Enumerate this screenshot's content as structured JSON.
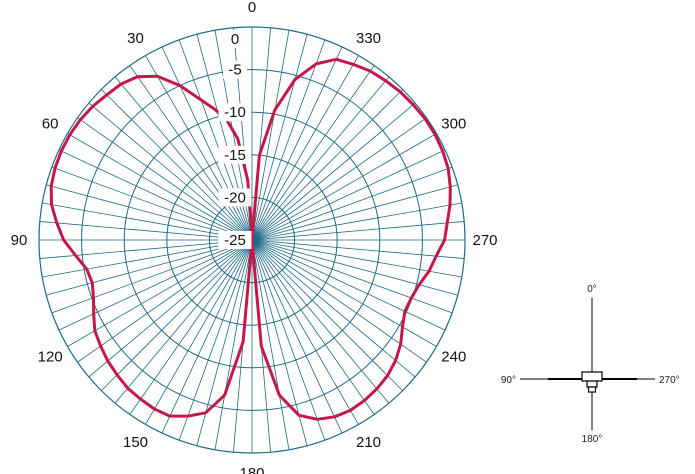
{
  "chart_data": {
    "type": "polar-line",
    "angle_ticks": [
      "0",
      "30",
      "60",
      "90",
      "120",
      "150",
      "180",
      "210",
      "240",
      "270",
      "300",
      "330"
    ],
    "radial_ticks": [
      "0",
      "-5",
      "-10",
      "-15",
      "-20",
      "-25"
    ],
    "rlim": [
      -25,
      0
    ],
    "angle_direction": "counterclockwise",
    "zero_at": "top",
    "grid": true,
    "series": [
      {
        "color": "#c4174a",
        "points": [
          [
            0,
            -25
          ],
          [
            4,
            -18
          ],
          [
            8,
            -13
          ],
          [
            12,
            -10.5
          ],
          [
            16,
            -9
          ],
          [
            20,
            -7.5
          ],
          [
            25,
            -5
          ],
          [
            30,
            -2.8
          ],
          [
            35,
            -1.6
          ],
          [
            40,
            -1.1
          ],
          [
            45,
            -0.9
          ],
          [
            50,
            -0.6
          ],
          [
            55,
            -0.4
          ],
          [
            60,
            -0.3
          ],
          [
            65,
            -0.3
          ],
          [
            70,
            -0.4
          ],
          [
            75,
            -0.6
          ],
          [
            80,
            -1.1
          ],
          [
            85,
            -2.0
          ],
          [
            90,
            -2.9
          ],
          [
            95,
            -4.2
          ],
          [
            100,
            -5.3
          ],
          [
            105,
            -5.6
          ],
          [
            110,
            -5.2
          ],
          [
            115,
            -4.5
          ],
          [
            120,
            -3.7
          ],
          [
            125,
            -3.3
          ],
          [
            130,
            -2.9
          ],
          [
            135,
            -2.6
          ],
          [
            140,
            -2.3
          ],
          [
            145,
            -2.2
          ],
          [
            150,
            -2.1
          ],
          [
            155,
            -2.2
          ],
          [
            160,
            -3.0
          ],
          [
            165,
            -4.0
          ],
          [
            170,
            -6.5
          ],
          [
            175,
            -13
          ],
          [
            180,
            -25
          ],
          [
            185,
            -12.5
          ],
          [
            190,
            -6.5
          ],
          [
            195,
            -3.7
          ],
          [
            200,
            -2.6
          ],
          [
            205,
            -2.1
          ],
          [
            210,
            -1.9
          ],
          [
            215,
            -2.0
          ],
          [
            220,
            -2.2
          ],
          [
            225,
            -2.5
          ],
          [
            230,
            -3.0
          ],
          [
            235,
            -3.7
          ],
          [
            240,
            -4.6
          ],
          [
            245,
            -5.2
          ],
          [
            250,
            -5.1
          ],
          [
            255,
            -4.7
          ],
          [
            260,
            -3.9
          ],
          [
            265,
            -3.3
          ],
          [
            270,
            -2.4
          ],
          [
            275,
            -2.0
          ],
          [
            280,
            -1.4
          ],
          [
            285,
            -0.9
          ],
          [
            290,
            -0.5
          ],
          [
            295,
            -0.3
          ],
          [
            300,
            -0.2
          ],
          [
            305,
            -0.2
          ],
          [
            310,
            -0.3
          ],
          [
            315,
            -0.4
          ],
          [
            320,
            -0.6
          ],
          [
            325,
            -0.8
          ],
          [
            330,
            -1.2
          ],
          [
            335,
            -1.6
          ],
          [
            340,
            -3.0
          ],
          [
            345,
            -5.5
          ],
          [
            350,
            -9.5
          ],
          [
            355,
            -15
          ],
          [
            360,
            -25
          ]
        ]
      }
    ]
  },
  "orientation_diagram": {
    "labels": {
      "top": "0°",
      "left": "90°",
      "right": "270°",
      "bottom": "180°"
    }
  },
  "colors": {
    "grid": "#1e6a86",
    "trace": "#c4174a",
    "background": "#ffffff"
  }
}
